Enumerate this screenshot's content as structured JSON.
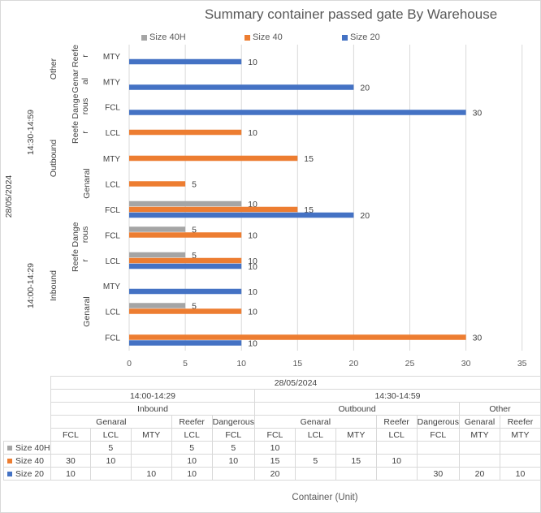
{
  "chart_data": {
    "type": "bar",
    "orientation": "horizontal",
    "title": "Summary container passed gate By Warehouse",
    "xlabel": "Container (Unit)",
    "xlim": [
      0,
      35
    ],
    "xticks": [
      0,
      5,
      10,
      15,
      20,
      25,
      30,
      35
    ],
    "legend_position": "top",
    "colors": {
      "Size 40H": "#a5a5a5",
      "Size 40": "#ed7d31",
      "Size 20": "#4472c4"
    },
    "date": "28/05/2024",
    "categories": [
      {
        "slot": "14:00-14:29",
        "direction": "Inbound",
        "type": "Genaral",
        "cargo": "FCL"
      },
      {
        "slot": "14:00-14:29",
        "direction": "Inbound",
        "type": "Genaral",
        "cargo": "LCL"
      },
      {
        "slot": "14:00-14:29",
        "direction": "Inbound",
        "type": "Genaral",
        "cargo": "MTY"
      },
      {
        "slot": "14:00-14:29",
        "direction": "Inbound",
        "type": "Reefer",
        "cargo": "LCL"
      },
      {
        "slot": "14:00-14:29",
        "direction": "Inbound",
        "type": "Dangerous",
        "cargo": "FCL"
      },
      {
        "slot": "14:30-14:59",
        "direction": "Outbound",
        "type": "Genaral",
        "cargo": "FCL"
      },
      {
        "slot": "14:30-14:59",
        "direction": "Outbound",
        "type": "Genaral",
        "cargo": "LCL"
      },
      {
        "slot": "14:30-14:59",
        "direction": "Outbound",
        "type": "Genaral",
        "cargo": "MTY"
      },
      {
        "slot": "14:30-14:59",
        "direction": "Outbound",
        "type": "Reefer",
        "cargo": "LCL"
      },
      {
        "slot": "14:30-14:59",
        "direction": "Outbound",
        "type": "Dangerous",
        "cargo": "FCL"
      },
      {
        "slot": "14:30-14:59",
        "direction": "Other",
        "type": "Genaral",
        "cargo": "MTY"
      },
      {
        "slot": "14:30-14:59",
        "direction": "Other",
        "type": "Reefer",
        "cargo": "MTY"
      }
    ],
    "series": [
      {
        "name": "Size 40H",
        "values": [
          null,
          5,
          null,
          5,
          5,
          10,
          null,
          null,
          null,
          null,
          null,
          null
        ]
      },
      {
        "name": "Size 40",
        "values": [
          30,
          10,
          null,
          10,
          10,
          15,
          5,
          15,
          10,
          null,
          null,
          null
        ]
      },
      {
        "name": "Size 20",
        "values": [
          10,
          null,
          10,
          10,
          null,
          20,
          null,
          null,
          null,
          30,
          20,
          10
        ]
      }
    ],
    "axis_group_labels": {
      "date": "28/05/2024",
      "slots": [
        "14:00-14:29",
        "14:30-14:59"
      ],
      "directions": [
        "Inbound",
        "Outbound",
        "Other"
      ],
      "types_inbound": [
        "Genaral",
        "Reefe r",
        "Dange rous"
      ],
      "types_outbound": [
        "Genaral",
        "Reefe r",
        "Dange rous"
      ],
      "types_other": [
        "Genar al",
        "Reefe r"
      ]
    },
    "data_table": {
      "date": "28/05/2024",
      "slots": [
        "14:00-14:29",
        "14:30-14:59"
      ],
      "directions": [
        "Inbound",
        "Outbound",
        "Other"
      ],
      "types": [
        "Genaral",
        "Reefer",
        "Dangerous",
        "Genaral",
        "Reefer",
        "Dangerous",
        "Genaral",
        "Reefer"
      ],
      "cargo": [
        "FCL",
        "LCL",
        "MTY",
        "LCL",
        "FCL",
        "FCL",
        "LCL",
        "MTY",
        "LCL",
        "FCL",
        "MTY",
        "MTY"
      ],
      "rows": [
        {
          "name": "Size 40H",
          "cells": [
            "",
            "5",
            "",
            "5",
            "5",
            "10",
            "",
            "",
            "",
            "",
            "",
            ""
          ]
        },
        {
          "name": "Size 40",
          "cells": [
            "30",
            "10",
            "",
            "10",
            "10",
            "15",
            "5",
            "15",
            "10",
            "",
            "",
            ""
          ]
        },
        {
          "name": "Size 20",
          "cells": [
            "10",
            "",
            "10",
            "10",
            "",
            "20",
            "",
            "",
            "",
            "30",
            "20",
            "10"
          ]
        }
      ]
    }
  }
}
